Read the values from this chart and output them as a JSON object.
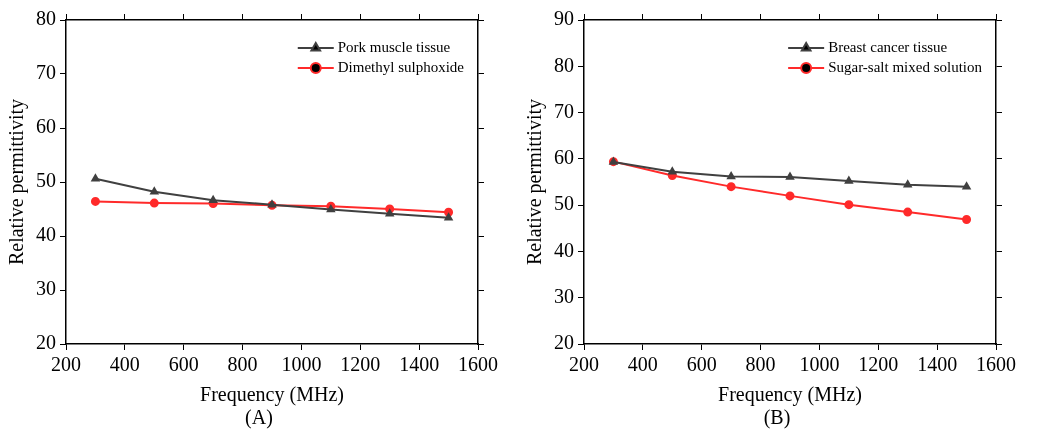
{
  "chart_data": [
    {
      "type": "line",
      "xlabel": "Frequency (MHz)",
      "ylabel": "Relative permittivity",
      "annotations": [
        "(A)"
      ],
      "x": [
        300,
        500,
        700,
        900,
        1100,
        1300,
        1500
      ],
      "series": [
        {
          "name": "Pork muscle tissue",
          "color": "#404040",
          "marker": "triangle",
          "values": [
            50.6,
            48.2,
            46.6,
            45.8,
            44.9,
            44.1,
            43.4
          ]
        },
        {
          "name": "Dimethyl sulphoxide",
          "color": "#ff2a2a",
          "marker": "circle",
          "values": [
            46.4,
            46.1,
            46.0,
            45.7,
            45.5,
            45.0,
            44.4
          ]
        }
      ],
      "xlim": [
        200,
        1600
      ],
      "xticks": [
        200,
        400,
        600,
        800,
        1000,
        1200,
        1400,
        1600
      ],
      "ylim": [
        20,
        80
      ],
      "yticks": [
        20,
        30,
        40,
        50,
        60,
        70,
        80
      ],
      "grid": false,
      "legend": "top right",
      "line_style": "solid"
    },
    {
      "type": "line",
      "xlabel": "Frequency (MHz)",
      "ylabel": "Relative permittivity",
      "annotations": [
        "(B)"
      ],
      "x": [
        300,
        500,
        700,
        900,
        1100,
        1300,
        1500
      ],
      "series": [
        {
          "name": "Breast cancer tissue",
          "color": "#404040",
          "marker": "triangle",
          "values": [
            59.3,
            57.2,
            56.2,
            56.1,
            55.2,
            54.4,
            54.0
          ]
        },
        {
          "name": "Sugar-salt mixed solution",
          "color": "#ff2a2a",
          "marker": "circle",
          "values": [
            59.4,
            56.4,
            54.0,
            52.0,
            50.1,
            48.5,
            46.9
          ]
        }
      ],
      "xlim": [
        200,
        1600
      ],
      "xticks": [
        200,
        400,
        600,
        800,
        1000,
        1200,
        1400,
        1600
      ],
      "ylim": [
        20,
        90
      ],
      "yticks": [
        20,
        30,
        40,
        50,
        60,
        70,
        80,
        90
      ],
      "grid": false,
      "legend": "top right",
      "line_style": "solid"
    }
  ]
}
